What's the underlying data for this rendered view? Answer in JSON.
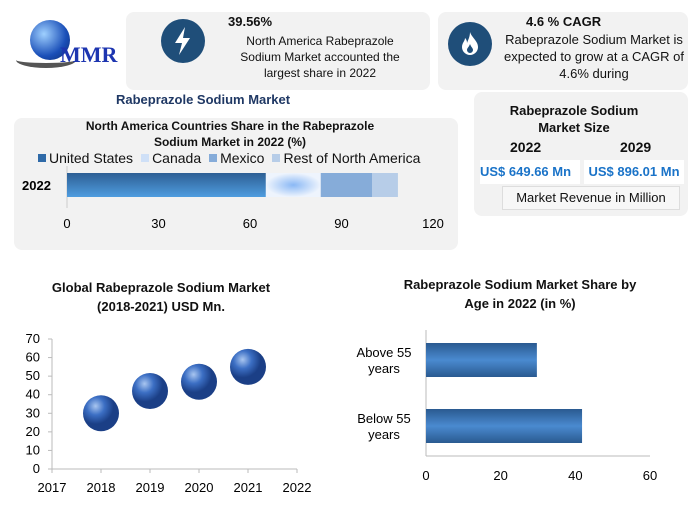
{
  "logo": {
    "text": "MMR"
  },
  "stat1": {
    "value": "39.56%",
    "text": "North America Rabeprazole Sodium Market accounted the largest share in 2022"
  },
  "stat2": {
    "value": "4.6 % CAGR",
    "text": "Rabeprazole Sodium Market is expected to grow at a CAGR of 4.6% during"
  },
  "main_title": "Rabeprazole Sodium Market",
  "size_box": {
    "title": "Rabeprazole Sodium Market Size",
    "year1": "2022",
    "year2": "2029",
    "value1": "US$ 649.66 Mn",
    "value2": "US$ 896.01 Mn",
    "note": "Market Revenue in Million"
  },
  "colors": {
    "accent": "#1f4e79",
    "value_blue": "#1a73c8"
  },
  "chart_data": [
    {
      "type": "bar",
      "orientation": "horizontal",
      "stacked": true,
      "title": "North America Countries Share in the Rabeprazole Sodium Market in 2022 (%)",
      "categories": [
        "2022"
      ],
      "series": [
        {
          "name": "United States",
          "values": [
            65.2
          ],
          "color": "#3f84c4"
        },
        {
          "name": "Canada",
          "values": [
            18
          ],
          "color": "#cfe0f7"
        },
        {
          "name": "Mexico",
          "values": [
            16.8
          ],
          "color": "#86acd9"
        },
        {
          "name": "Rest of North America",
          "values": [
            8.5
          ],
          "color": "#b7cde8"
        }
      ],
      "xlim": [
        0,
        120
      ],
      "xticks": [
        "0",
        "30",
        "60",
        "90",
        "120"
      ],
      "legend": "top"
    },
    {
      "type": "scatter",
      "title": "Global Rabeprazole Sodium Market (2018-2021) USD Mn.",
      "x": [
        2018,
        2019,
        2020,
        2021
      ],
      "y": [
        30,
        42,
        47,
        55
      ],
      "xlim": [
        2017,
        2022
      ],
      "ylim": [
        0,
        70
      ],
      "xticks": [
        "2017",
        "2018",
        "2019",
        "2020",
        "2021",
        "2022"
      ],
      "yticks": [
        "0",
        "10",
        "20",
        "30",
        "40",
        "50",
        "60",
        "70"
      ]
    },
    {
      "type": "bar",
      "orientation": "horizontal",
      "title": "Rabeprazole Sodium Market Share by Age in 2022 (in %)",
      "categories": [
        "Above 55 years",
        "Below 55 years"
      ],
      "values": [
        29.7,
        41.8
      ],
      "xlim": [
        0,
        60
      ],
      "xticks": [
        "0",
        "20",
        "40",
        "60"
      ]
    }
  ]
}
